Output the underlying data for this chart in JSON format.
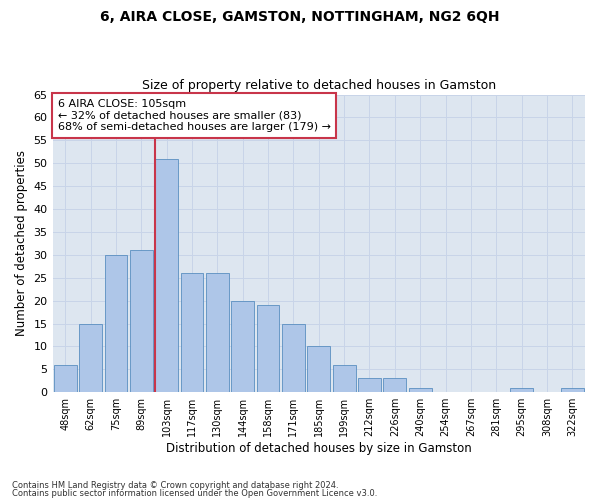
{
  "title": "6, AIRA CLOSE, GAMSTON, NOTTINGHAM, NG2 6QH",
  "subtitle": "Size of property relative to detached houses in Gamston",
  "xlabel": "Distribution of detached houses by size in Gamston",
  "ylabel": "Number of detached properties",
  "categories": [
    "48sqm",
    "62sqm",
    "75sqm",
    "89sqm",
    "103sqm",
    "117sqm",
    "130sqm",
    "144sqm",
    "158sqm",
    "171sqm",
    "185sqm",
    "199sqm",
    "212sqm",
    "226sqm",
    "240sqm",
    "254sqm",
    "267sqm",
    "281sqm",
    "295sqm",
    "308sqm",
    "322sqm"
  ],
  "values": [
    6,
    15,
    30,
    31,
    51,
    26,
    26,
    20,
    19,
    15,
    10,
    6,
    3,
    3,
    1,
    0,
    0,
    0,
    1,
    0,
    1
  ],
  "bar_color": "#aec6e8",
  "bar_edge_color": "#5a8fc0",
  "highlight_index": 4,
  "vline_color": "#c8354a",
  "ylim": [
    0,
    65
  ],
  "yticks": [
    0,
    5,
    10,
    15,
    20,
    25,
    30,
    35,
    40,
    45,
    50,
    55,
    60,
    65
  ],
  "annotation_title": "6 AIRA CLOSE: 105sqm",
  "annotation_line1": "← 32% of detached houses are smaller (83)",
  "annotation_line2": "68% of semi-detached houses are larger (179) →",
  "annotation_box_color": "#ffffff",
  "annotation_box_edge": "#c8354a",
  "grid_color": "#c8d4e8",
  "background_color": "#dde6f0",
  "footer_line1": "Contains HM Land Registry data © Crown copyright and database right 2024.",
  "footer_line2": "Contains public sector information licensed under the Open Government Licence v3.0."
}
